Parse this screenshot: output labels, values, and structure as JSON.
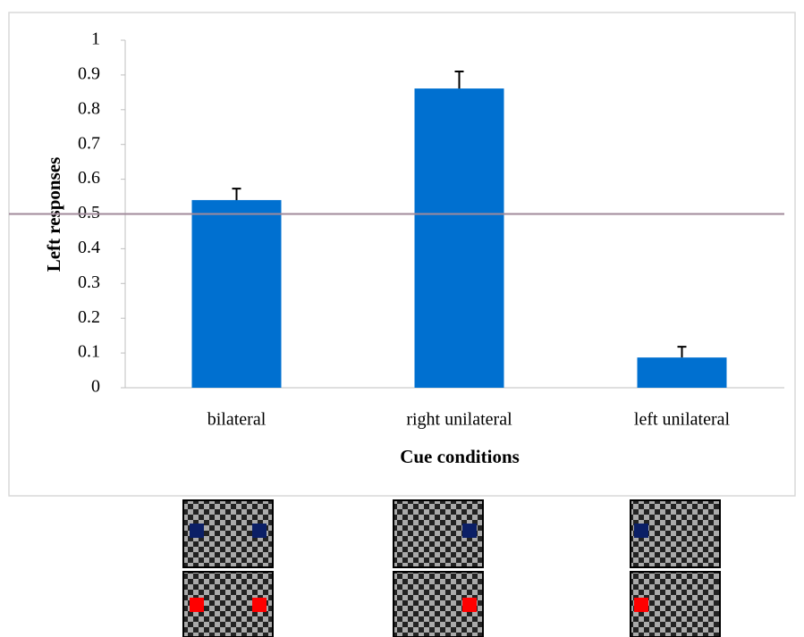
{
  "chart_data": {
    "type": "bar",
    "x_label": "Cue conditions",
    "y_label": "Left responses",
    "categories": [
      "bilateral",
      "right unilateral",
      "left unilateral"
    ],
    "values": [
      0.54,
      0.861,
      0.087
    ],
    "errors": [
      0.033,
      0.049,
      0.031
    ],
    "color": "#0070d0",
    "reference_line": 0.5,
    "reference_color": "#a08a9a",
    "ylim": [
      0,
      1
    ],
    "yticks": [
      0,
      0.1,
      0.2,
      0.3,
      0.4,
      0.5,
      0.6,
      0.7,
      0.8,
      0.9,
      1
    ]
  }
}
